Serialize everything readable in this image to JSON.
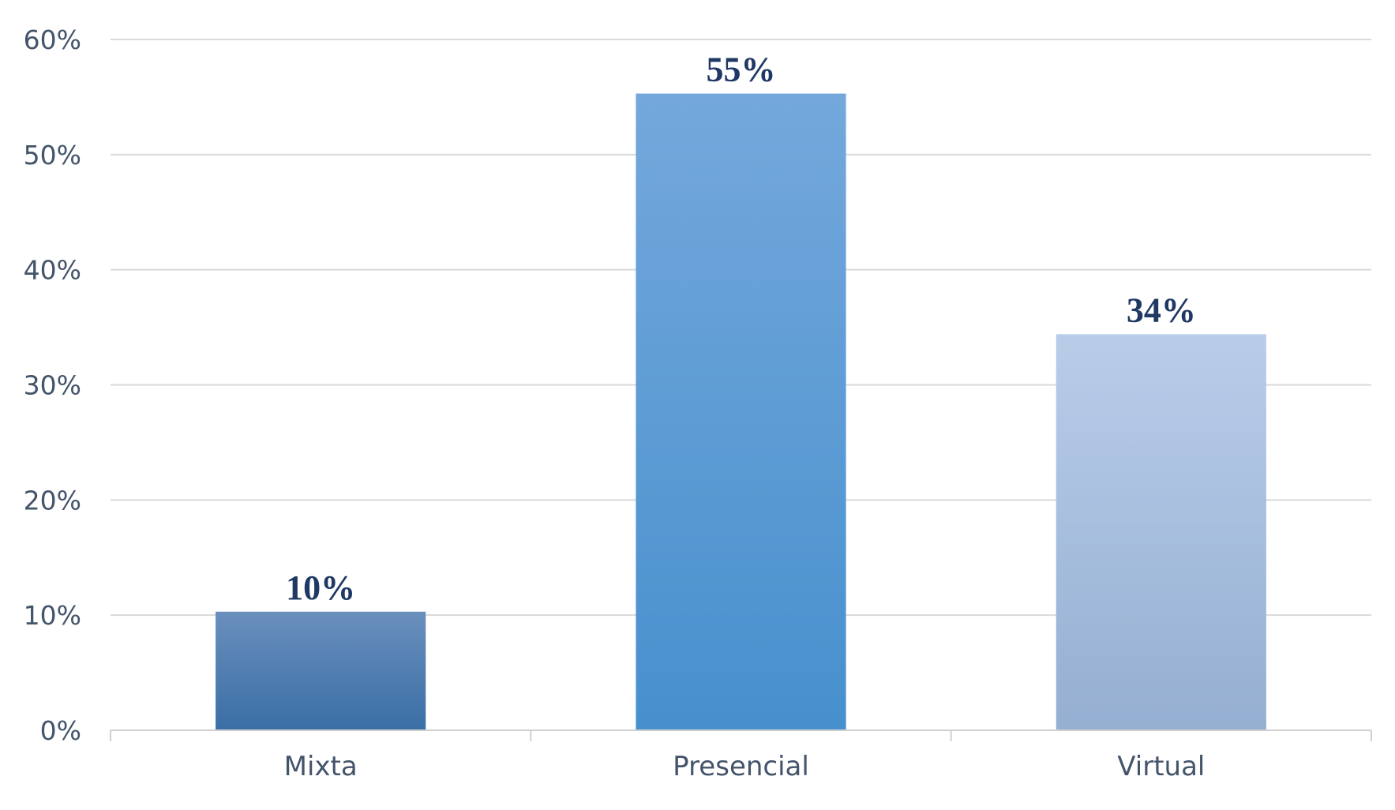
{
  "chart_data": {
    "type": "bar",
    "title": "",
    "xlabel": "",
    "ylabel": "",
    "categories": [
      "Mixta",
      "Presencial",
      "Virtual"
    ],
    "values": [
      0.103,
      0.553,
      0.344
    ],
    "data_labels": [
      "10%",
      "55%",
      "34%"
    ],
    "ylim": [
      0,
      0.6
    ],
    "yticks": [
      0,
      0.1,
      0.2,
      0.3,
      0.4,
      0.5,
      0.6
    ],
    "ytick_labels": [
      "0%",
      "10%",
      "20%",
      "30%",
      "40%",
      "50%",
      "60%"
    ],
    "grid": true,
    "legend": "none",
    "bar_colors": [
      {
        "top": "#6a8fbd",
        "bottom": "#3a6ea5"
      },
      {
        "top": "#74a8dc",
        "bottom": "#4790cd"
      },
      {
        "top": "#b9cde9",
        "bottom": "#95afd2"
      }
    ],
    "gridline_color": "#d9d9d9",
    "axis_color": "#d0d0d0",
    "label_color": "#44546a",
    "data_label_color": "#1f3864"
  }
}
